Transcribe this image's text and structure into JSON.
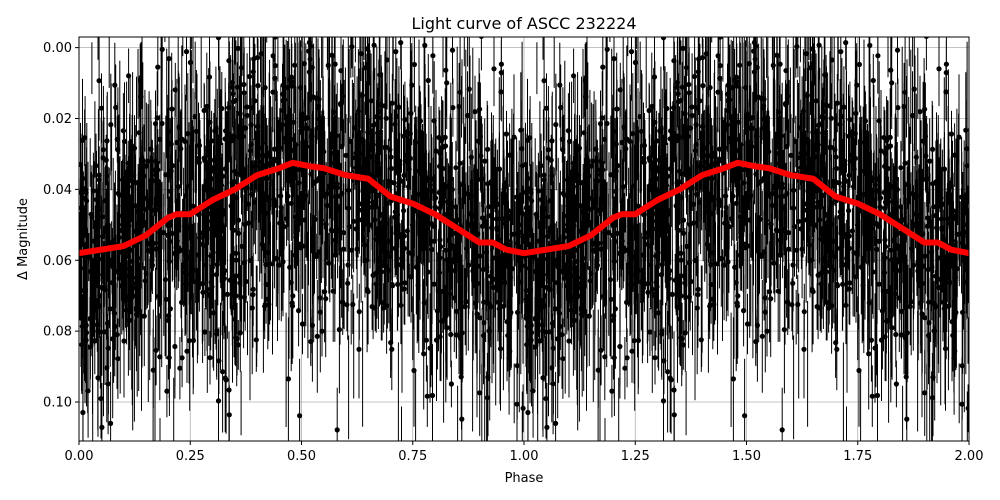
{
  "chart_data": {
    "type": "scatter",
    "title": "Light curve of ASCC 232224",
    "xlabel": "Phase",
    "ylabel": "Δ Magnitude",
    "xlim": [
      0.0,
      2.0
    ],
    "ylim": [
      0.111,
      -0.003
    ],
    "y_inverted": true,
    "grid": true,
    "x_ticks": [
      "0.00",
      "0.25",
      "0.50",
      "0.75",
      "1.00",
      "1.25",
      "1.50",
      "1.75",
      "2.00"
    ],
    "y_ticks": [
      "0.00",
      "0.02",
      "0.04",
      "0.06",
      "0.08",
      "0.10"
    ],
    "series": [
      {
        "name": "observations",
        "style": "errorbar points",
        "color": "#000000",
        "description": "Dense phase-folded photometric points with vertical error bars, scattered roughly between 0.00 and 0.11 Δmag"
      },
      {
        "name": "binned mean",
        "style": "thick line",
        "color": "#ff0000",
        "x": [
          0.0,
          0.05,
          0.1,
          0.15,
          0.2,
          0.22,
          0.25,
          0.3,
          0.35,
          0.4,
          0.45,
          0.48,
          0.52,
          0.55,
          0.6,
          0.65,
          0.7,
          0.75,
          0.8,
          0.85,
          0.9,
          0.93,
          0.96,
          1.0,
          1.05,
          1.1,
          1.15,
          1.2,
          1.22,
          1.25,
          1.3,
          1.35,
          1.4,
          1.45,
          1.48,
          1.52,
          1.55,
          1.6,
          1.65,
          1.7,
          1.75,
          1.8,
          1.85,
          1.9,
          1.93,
          1.96,
          2.0
        ],
        "y": [
          0.058,
          0.057,
          0.056,
          0.053,
          0.048,
          0.047,
          0.047,
          0.043,
          0.04,
          0.036,
          0.034,
          0.0325,
          0.0335,
          0.034,
          0.036,
          0.037,
          0.042,
          0.044,
          0.047,
          0.051,
          0.055,
          0.055,
          0.057,
          0.058,
          0.057,
          0.056,
          0.053,
          0.048,
          0.047,
          0.047,
          0.043,
          0.04,
          0.036,
          0.034,
          0.0325,
          0.0335,
          0.034,
          0.036,
          0.037,
          0.042,
          0.044,
          0.047,
          0.051,
          0.055,
          0.055,
          0.057,
          0.058
        ]
      }
    ]
  }
}
